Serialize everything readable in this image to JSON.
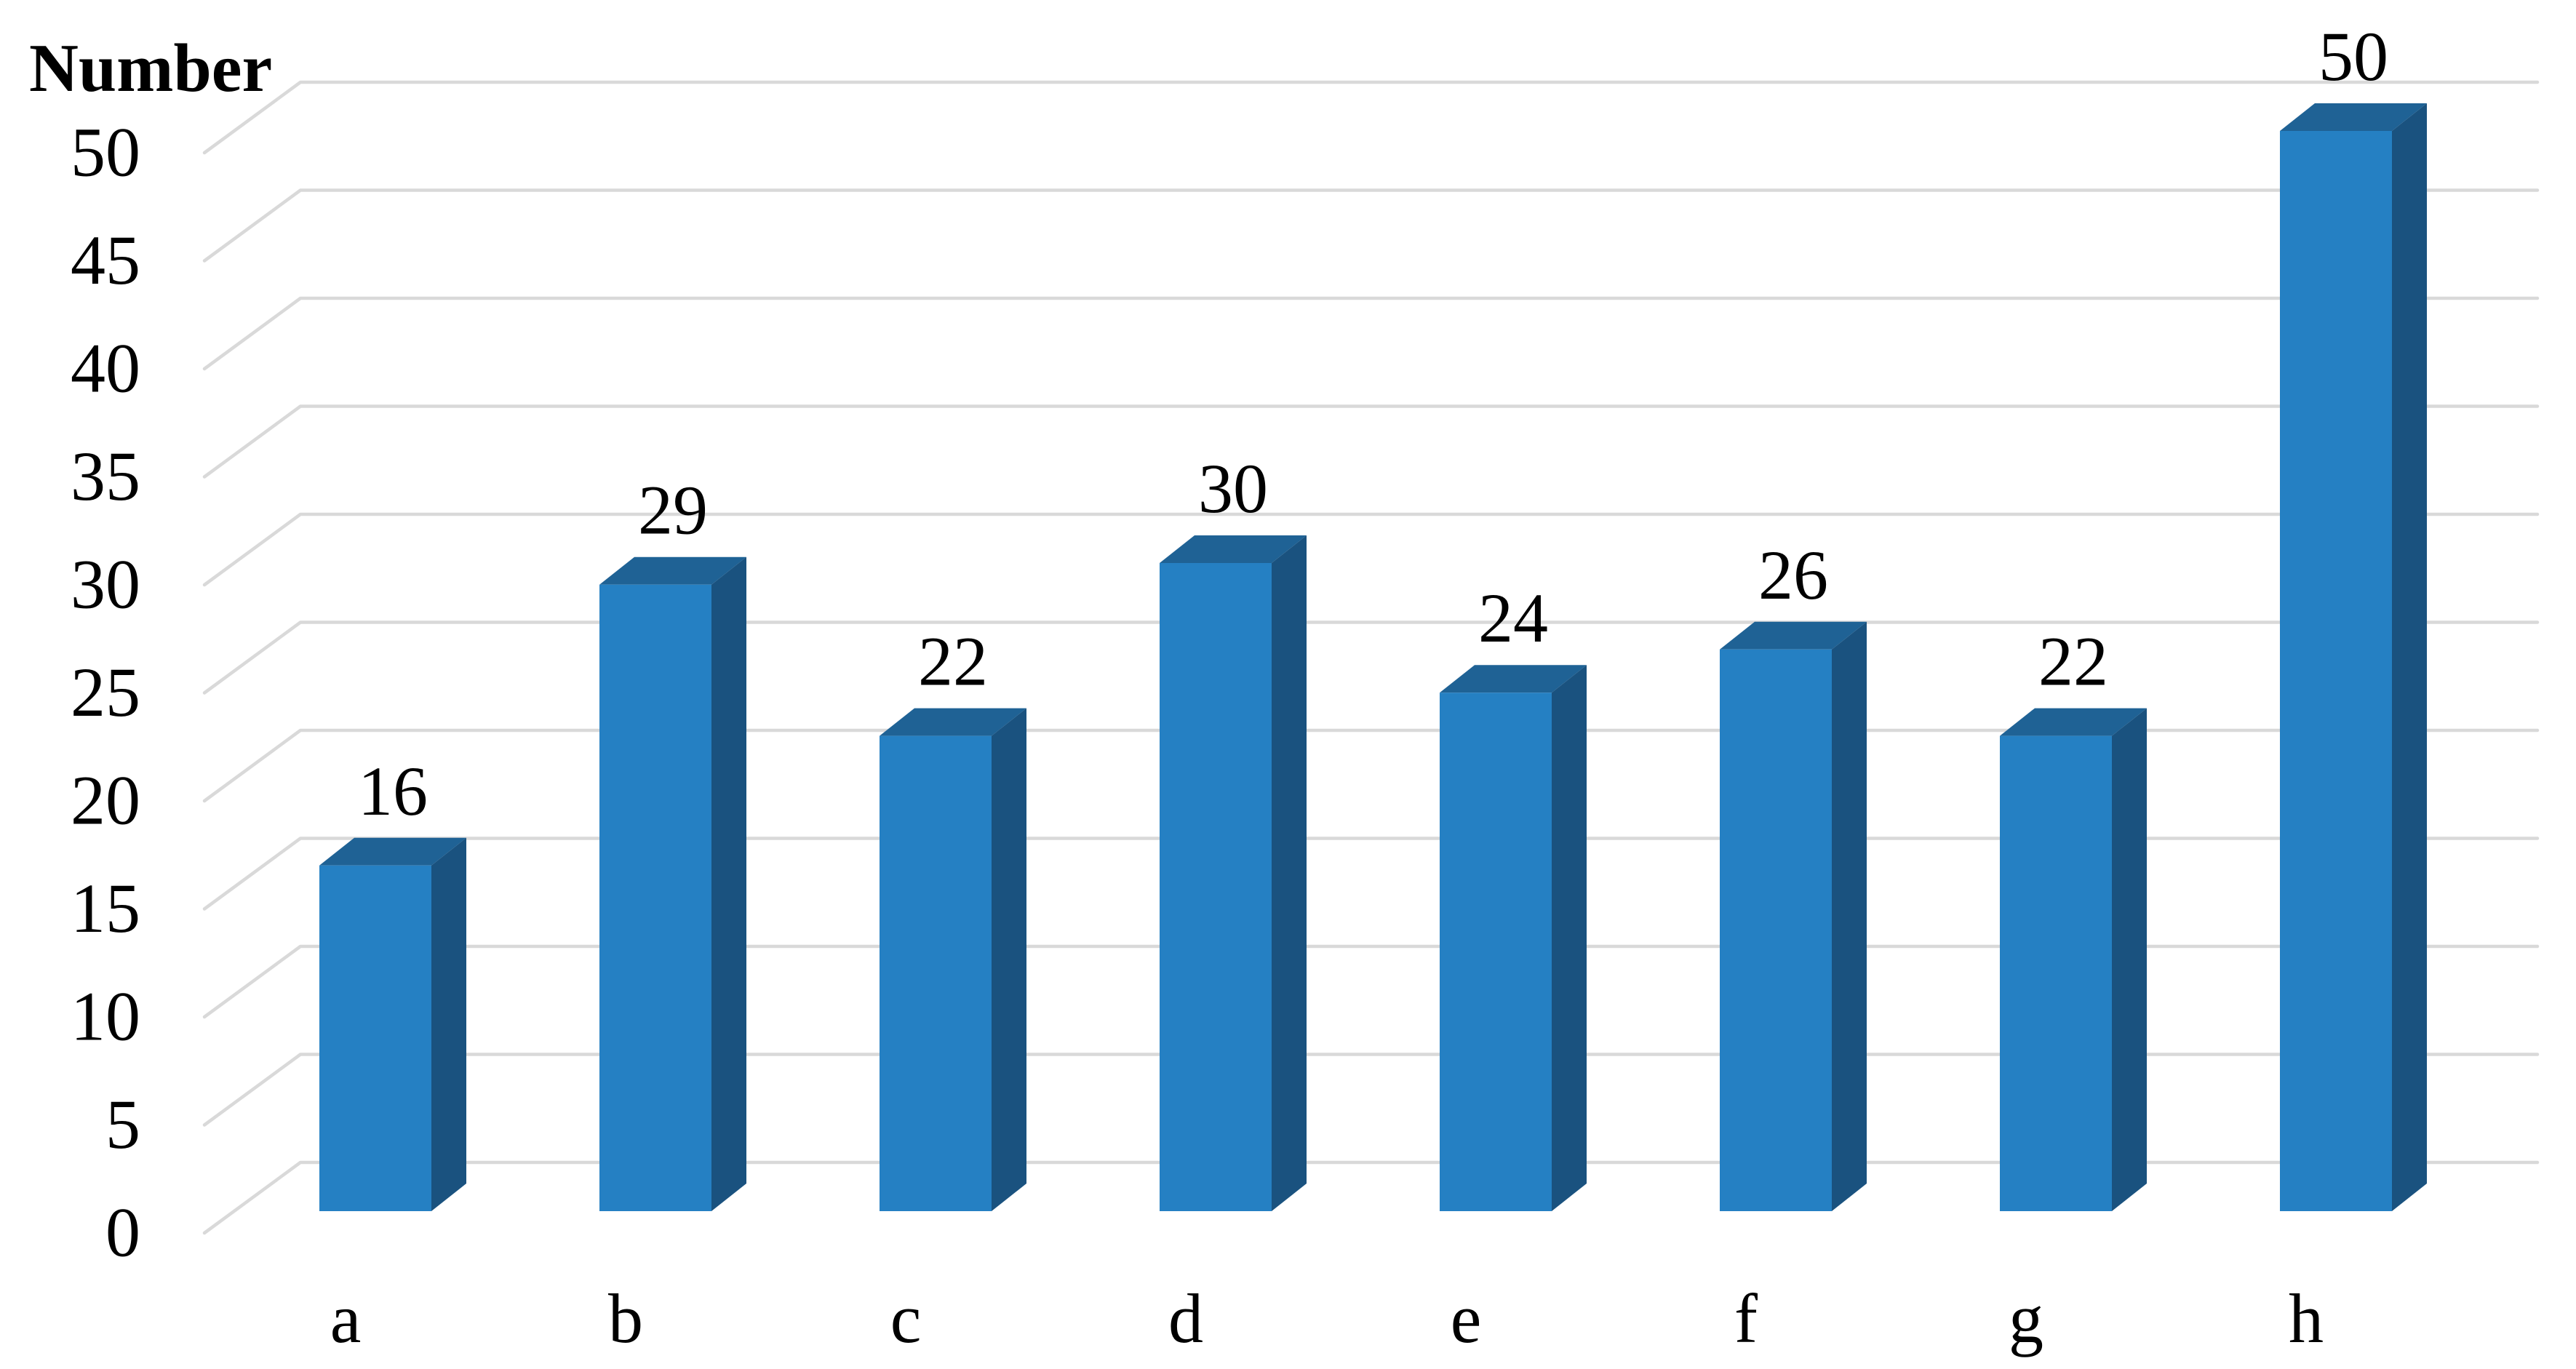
{
  "page": {
    "background": "#FFFFFF"
  },
  "colors": {
    "bar_front": "#2580C3",
    "bar_top": "#1F6295",
    "bar_side": "#1A527F",
    "gridline": "#D9D9D9",
    "text": "#000000"
  },
  "chart_data": {
    "type": "bar",
    "projection": "3d-oblique",
    "title": "",
    "yaxis_title": "Number",
    "xlabel": "",
    "categories": [
      "a",
      "b",
      "c",
      "d",
      "e",
      "f",
      "g",
      "h"
    ],
    "values": [
      16,
      29,
      22,
      30,
      24,
      26,
      22,
      50
    ],
    "data_labels": [
      "16",
      "29",
      "22",
      "30",
      "24",
      "26",
      "22",
      "50"
    ],
    "yticks": [
      0,
      5,
      10,
      15,
      20,
      25,
      30,
      35,
      40,
      45,
      50
    ],
    "ylim": [
      0,
      50
    ],
    "ytick_step": 5,
    "grid": true,
    "legend": false,
    "data_label_position": "outside-end"
  }
}
